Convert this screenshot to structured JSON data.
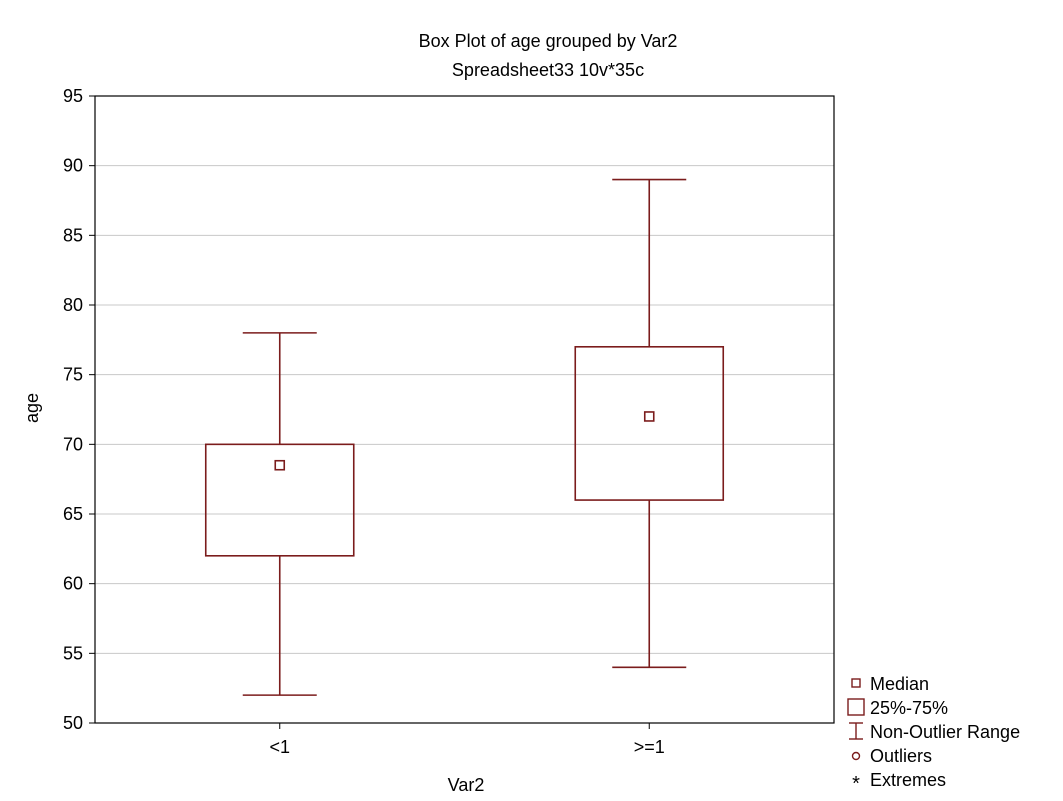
{
  "chart_data": {
    "type": "box",
    "title": "Box Plot of age grouped by  Var2",
    "subtitle": "Spreadsheet33 10v*35c",
    "xlabel": "Var2",
    "ylabel": "age",
    "ylim": [
      50,
      95
    ],
    "yticks": [
      50,
      55,
      60,
      65,
      70,
      75,
      80,
      85,
      90,
      95
    ],
    "grid": true,
    "categories": [
      "<1",
      ">=1"
    ],
    "boxes": [
      {
        "category": "<1",
        "min": 52,
        "q1": 62,
        "median": 68.5,
        "q3": 70,
        "max": 78
      },
      {
        "category": ">=1",
        "min": 54,
        "q1": 66,
        "median": 72,
        "q3": 77,
        "max": 89
      }
    ],
    "legend": {
      "position": "bottom-right",
      "items": [
        {
          "icon": "median-square-icon",
          "label": "Median"
        },
        {
          "icon": "box-square-icon",
          "label": "25%-75%"
        },
        {
          "icon": "whisker-icon",
          "label": "Non-Outlier Range"
        },
        {
          "icon": "outlier-circle-icon",
          "label": "Outliers"
        },
        {
          "icon": "extreme-asterisk-icon",
          "label": "Extremes"
        }
      ]
    },
    "colors": {
      "line": "#7b1c1c",
      "grid": "#c8c8c8",
      "axis": "#000000"
    }
  }
}
